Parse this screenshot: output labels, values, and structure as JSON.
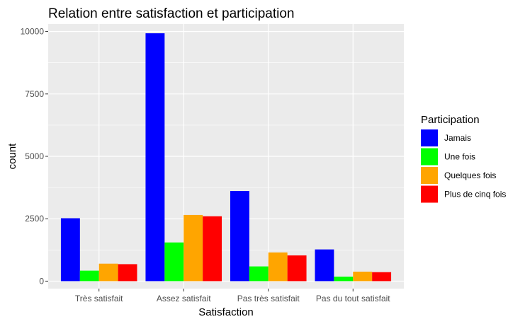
{
  "chart_data": {
    "type": "bar",
    "title": "Relation entre satisfaction et participation",
    "xlabel": "Satisfaction",
    "ylabel": "count",
    "ylim": [
      -300,
      10300
    ],
    "yticks": [
      0,
      2500,
      5000,
      7500,
      10000
    ],
    "grid": true,
    "legend_position": "right",
    "legend_title": "Participation",
    "categories": [
      "Très satisfait",
      "Assez satisfait",
      "Pas très satisfait",
      "Pas du tout satisfait"
    ],
    "series": [
      {
        "name": "Jamais",
        "color": "#0000ff",
        "values": [
          2520,
          9930,
          3610,
          1270
        ]
      },
      {
        "name": "Une fois",
        "color": "#00ff00",
        "values": [
          420,
          1550,
          590,
          180
        ]
      },
      {
        "name": "Quelques fois",
        "color": "#ffa500",
        "values": [
          700,
          2650,
          1150,
          380
        ]
      },
      {
        "name": "Plus de cinq fois",
        "color": "#ff0000",
        "values": [
          680,
          2600,
          1030,
          360
        ]
      }
    ],
    "panel_background": "#ebebeb",
    "gridline_color": "#ffffff"
  }
}
